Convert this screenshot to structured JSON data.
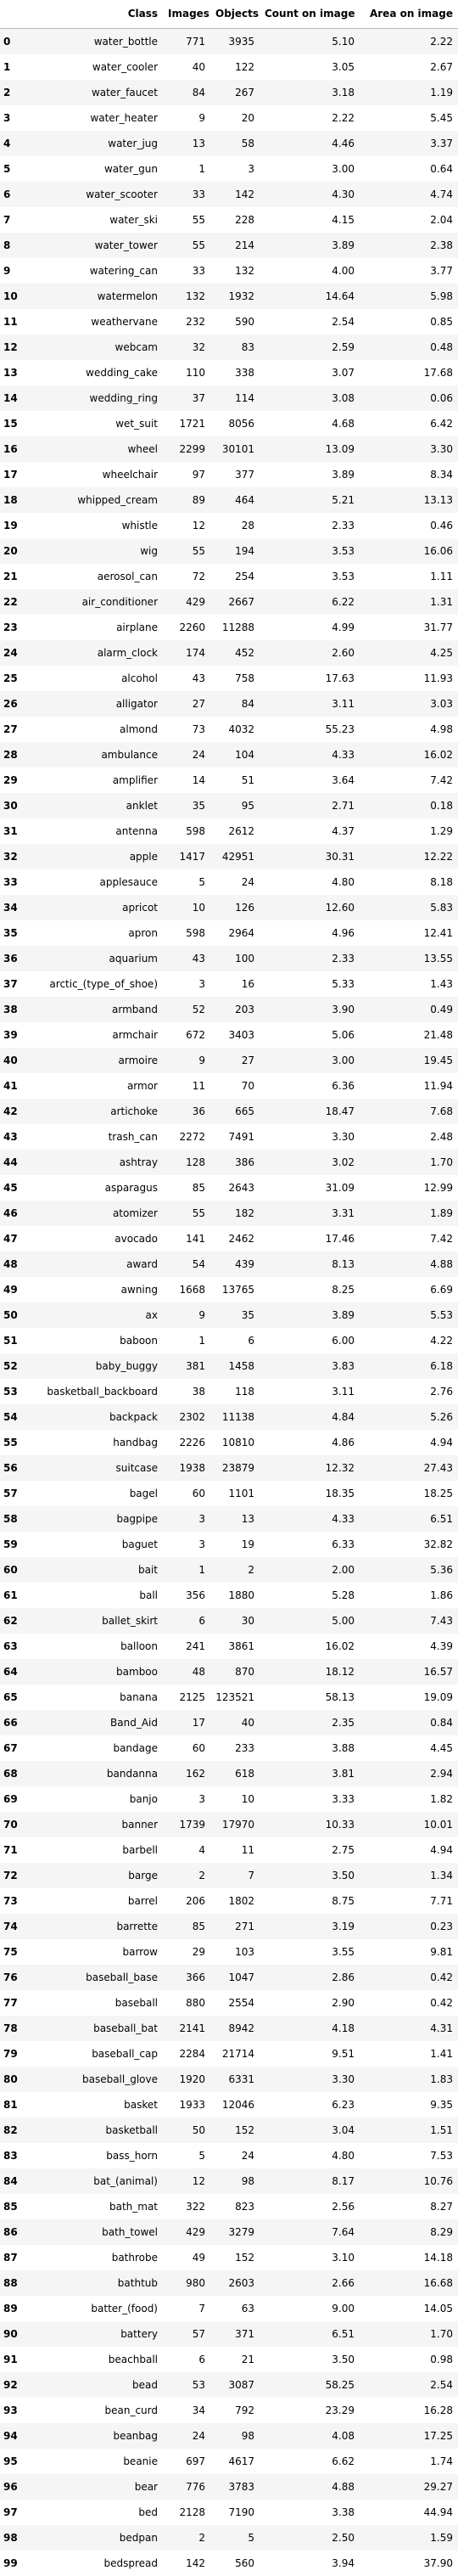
{
  "table": {
    "headers": [
      "",
      "Class",
      "Images",
      "Objects",
      "Count on image",
      "Area on image"
    ],
    "rows": [
      [
        "0",
        "water_bottle",
        "771",
        "3935",
        "5.10",
        "2.22"
      ],
      [
        "1",
        "water_cooler",
        "40",
        "122",
        "3.05",
        "2.67"
      ],
      [
        "2",
        "water_faucet",
        "84",
        "267",
        "3.18",
        "1.19"
      ],
      [
        "3",
        "water_heater",
        "9",
        "20",
        "2.22",
        "5.45"
      ],
      [
        "4",
        "water_jug",
        "13",
        "58",
        "4.46",
        "3.37"
      ],
      [
        "5",
        "water_gun",
        "1",
        "3",
        "3.00",
        "0.64"
      ],
      [
        "6",
        "water_scooter",
        "33",
        "142",
        "4.30",
        "4.74"
      ],
      [
        "7",
        "water_ski",
        "55",
        "228",
        "4.15",
        "2.04"
      ],
      [
        "8",
        "water_tower",
        "55",
        "214",
        "3.89",
        "2.38"
      ],
      [
        "9",
        "watering_can",
        "33",
        "132",
        "4.00",
        "3.77"
      ],
      [
        "10",
        "watermelon",
        "132",
        "1932",
        "14.64",
        "5.98"
      ],
      [
        "11",
        "weathervane",
        "232",
        "590",
        "2.54",
        "0.85"
      ],
      [
        "12",
        "webcam",
        "32",
        "83",
        "2.59",
        "0.48"
      ],
      [
        "13",
        "wedding_cake",
        "110",
        "338",
        "3.07",
        "17.68"
      ],
      [
        "14",
        "wedding_ring",
        "37",
        "114",
        "3.08",
        "0.06"
      ],
      [
        "15",
        "wet_suit",
        "1721",
        "8056",
        "4.68",
        "6.42"
      ],
      [
        "16",
        "wheel",
        "2299",
        "30101",
        "13.09",
        "3.30"
      ],
      [
        "17",
        "wheelchair",
        "97",
        "377",
        "3.89",
        "8.34"
      ],
      [
        "18",
        "whipped_cream",
        "89",
        "464",
        "5.21",
        "13.13"
      ],
      [
        "19",
        "whistle",
        "12",
        "28",
        "2.33",
        "0.46"
      ],
      [
        "20",
        "wig",
        "55",
        "194",
        "3.53",
        "16.06"
      ],
      [
        "21",
        "aerosol_can",
        "72",
        "254",
        "3.53",
        "1.11"
      ],
      [
        "22",
        "air_conditioner",
        "429",
        "2667",
        "6.22",
        "1.31"
      ],
      [
        "23",
        "airplane",
        "2260",
        "11288",
        "4.99",
        "31.77"
      ],
      [
        "24",
        "alarm_clock",
        "174",
        "452",
        "2.60",
        "4.25"
      ],
      [
        "25",
        "alcohol",
        "43",
        "758",
        "17.63",
        "11.93"
      ],
      [
        "26",
        "alligator",
        "27",
        "84",
        "3.11",
        "3.03"
      ],
      [
        "27",
        "almond",
        "73",
        "4032",
        "55.23",
        "4.98"
      ],
      [
        "28",
        "ambulance",
        "24",
        "104",
        "4.33",
        "16.02"
      ],
      [
        "29",
        "amplifier",
        "14",
        "51",
        "3.64",
        "7.42"
      ],
      [
        "30",
        "anklet",
        "35",
        "95",
        "2.71",
        "0.18"
      ],
      [
        "31",
        "antenna",
        "598",
        "2612",
        "4.37",
        "1.29"
      ],
      [
        "32",
        "apple",
        "1417",
        "42951",
        "30.31",
        "12.22"
      ],
      [
        "33",
        "applesauce",
        "5",
        "24",
        "4.80",
        "8.18"
      ],
      [
        "34",
        "apricot",
        "10",
        "126",
        "12.60",
        "5.83"
      ],
      [
        "35",
        "apron",
        "598",
        "2964",
        "4.96",
        "12.41"
      ],
      [
        "36",
        "aquarium",
        "43",
        "100",
        "2.33",
        "13.55"
      ],
      [
        "37",
        "arctic_(type_of_shoe)",
        "3",
        "16",
        "5.33",
        "1.43"
      ],
      [
        "38",
        "armband",
        "52",
        "203",
        "3.90",
        "0.49"
      ],
      [
        "39",
        "armchair",
        "672",
        "3403",
        "5.06",
        "21.48"
      ],
      [
        "40",
        "armoire",
        "9",
        "27",
        "3.00",
        "19.45"
      ],
      [
        "41",
        "armor",
        "11",
        "70",
        "6.36",
        "11.94"
      ],
      [
        "42",
        "artichoke",
        "36",
        "665",
        "18.47",
        "7.68"
      ],
      [
        "43",
        "trash_can",
        "2272",
        "7491",
        "3.30",
        "2.48"
      ],
      [
        "44",
        "ashtray",
        "128",
        "386",
        "3.02",
        "1.70"
      ],
      [
        "45",
        "asparagus",
        "85",
        "2643",
        "31.09",
        "12.99"
      ],
      [
        "46",
        "atomizer",
        "55",
        "182",
        "3.31",
        "1.89"
      ],
      [
        "47",
        "avocado",
        "141",
        "2462",
        "17.46",
        "7.42"
      ],
      [
        "48",
        "award",
        "54",
        "439",
        "8.13",
        "4.88"
      ],
      [
        "49",
        "awning",
        "1668",
        "13765",
        "8.25",
        "6.69"
      ],
      [
        "50",
        "ax",
        "9",
        "35",
        "3.89",
        "5.53"
      ],
      [
        "51",
        "baboon",
        "1",
        "6",
        "6.00",
        "4.22"
      ],
      [
        "52",
        "baby_buggy",
        "381",
        "1458",
        "3.83",
        "6.18"
      ],
      [
        "53",
        "basketball_backboard",
        "38",
        "118",
        "3.11",
        "2.76"
      ],
      [
        "54",
        "backpack",
        "2302",
        "11138",
        "4.84",
        "5.26"
      ],
      [
        "55",
        "handbag",
        "2226",
        "10810",
        "4.86",
        "4.94"
      ],
      [
        "56",
        "suitcase",
        "1938",
        "23879",
        "12.32",
        "27.43"
      ],
      [
        "57",
        "bagel",
        "60",
        "1101",
        "18.35",
        "18.25"
      ],
      [
        "58",
        "bagpipe",
        "3",
        "13",
        "4.33",
        "6.51"
      ],
      [
        "59",
        "baguet",
        "3",
        "19",
        "6.33",
        "32.82"
      ],
      [
        "60",
        "bait",
        "1",
        "2",
        "2.00",
        "5.36"
      ],
      [
        "61",
        "ball",
        "356",
        "1880",
        "5.28",
        "1.86"
      ],
      [
        "62",
        "ballet_skirt",
        "6",
        "30",
        "5.00",
        "7.43"
      ],
      [
        "63",
        "balloon",
        "241",
        "3861",
        "16.02",
        "4.39"
      ],
      [
        "64",
        "bamboo",
        "48",
        "870",
        "18.12",
        "16.57"
      ],
      [
        "65",
        "banana",
        "2125",
        "123521",
        "58.13",
        "19.09"
      ],
      [
        "66",
        "Band_Aid",
        "17",
        "40",
        "2.35",
        "0.84"
      ],
      [
        "67",
        "bandage",
        "60",
        "233",
        "3.88",
        "4.45"
      ],
      [
        "68",
        "bandanna",
        "162",
        "618",
        "3.81",
        "2.94"
      ],
      [
        "69",
        "banjo",
        "3",
        "10",
        "3.33",
        "1.82"
      ],
      [
        "70",
        "banner",
        "1739",
        "17970",
        "10.33",
        "10.01"
      ],
      [
        "71",
        "barbell",
        "4",
        "11",
        "2.75",
        "4.94"
      ],
      [
        "72",
        "barge",
        "2",
        "7",
        "3.50",
        "1.34"
      ],
      [
        "73",
        "barrel",
        "206",
        "1802",
        "8.75",
        "7.71"
      ],
      [
        "74",
        "barrette",
        "85",
        "271",
        "3.19",
        "0.23"
      ],
      [
        "75",
        "barrow",
        "29",
        "103",
        "3.55",
        "9.81"
      ],
      [
        "76",
        "baseball_base",
        "366",
        "1047",
        "2.86",
        "0.42"
      ],
      [
        "77",
        "baseball",
        "880",
        "2554",
        "2.90",
        "0.42"
      ],
      [
        "78",
        "baseball_bat",
        "2141",
        "8942",
        "4.18",
        "4.31"
      ],
      [
        "79",
        "baseball_cap",
        "2284",
        "21714",
        "9.51",
        "1.41"
      ],
      [
        "80",
        "baseball_glove",
        "1920",
        "6331",
        "3.30",
        "1.83"
      ],
      [
        "81",
        "basket",
        "1933",
        "12046",
        "6.23",
        "9.35"
      ],
      [
        "82",
        "basketball",
        "50",
        "152",
        "3.04",
        "1.51"
      ],
      [
        "83",
        "bass_horn",
        "5",
        "24",
        "4.80",
        "7.53"
      ],
      [
        "84",
        "bat_(animal)",
        "12",
        "98",
        "8.17",
        "10.76"
      ],
      [
        "85",
        "bath_mat",
        "322",
        "823",
        "2.56",
        "8.27"
      ],
      [
        "86",
        "bath_towel",
        "429",
        "3279",
        "7.64",
        "8.29"
      ],
      [
        "87",
        "bathrobe",
        "49",
        "152",
        "3.10",
        "14.18"
      ],
      [
        "88",
        "bathtub",
        "980",
        "2603",
        "2.66",
        "16.68"
      ],
      [
        "89",
        "batter_(food)",
        "7",
        "63",
        "9.00",
        "14.05"
      ],
      [
        "90",
        "battery",
        "57",
        "371",
        "6.51",
        "1.70"
      ],
      [
        "91",
        "beachball",
        "6",
        "21",
        "3.50",
        "0.98"
      ],
      [
        "92",
        "bead",
        "53",
        "3087",
        "58.25",
        "2.54"
      ],
      [
        "93",
        "bean_curd",
        "34",
        "792",
        "23.29",
        "16.28"
      ],
      [
        "94",
        "beanbag",
        "24",
        "98",
        "4.08",
        "17.25"
      ],
      [
        "95",
        "beanie",
        "697",
        "4617",
        "6.62",
        "1.74"
      ],
      [
        "96",
        "bear",
        "776",
        "3783",
        "4.88",
        "29.27"
      ],
      [
        "97",
        "bed",
        "2128",
        "7190",
        "3.38",
        "44.94"
      ],
      [
        "98",
        "bedpan",
        "2",
        "5",
        "2.50",
        "1.59"
      ],
      [
        "99",
        "bedspread",
        "142",
        "560",
        "3.94",
        "37.90"
      ]
    ]
  }
}
